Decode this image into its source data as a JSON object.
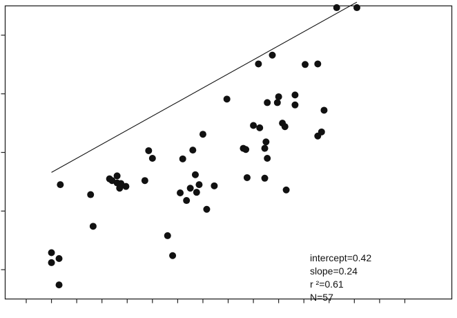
{
  "chart_data": {
    "type": "scatter",
    "title": "",
    "xlabel": "",
    "ylabel": "",
    "xlim": [
      0,
      16
    ],
    "ylim": [
      -1.5,
      3.5
    ],
    "grid": false,
    "x_ticks": [
      0,
      1,
      2,
      3,
      4,
      5,
      6,
      7,
      8,
      9,
      10,
      11,
      12,
      13,
      14,
      15
    ],
    "y_ticks": [
      -1,
      0,
      1,
      2,
      3
    ],
    "colors": {
      "points": "#111111",
      "line": "#111111",
      "frame": "#222222"
    },
    "points": [
      [
        1.0,
        -0.71
      ],
      [
        1.0,
        -0.88
      ],
      [
        1.3,
        -0.81
      ],
      [
        1.3,
        -1.26
      ],
      [
        1.35,
        0.45
      ],
      [
        2.55,
        0.28
      ],
      [
        2.65,
        -0.26
      ],
      [
        3.3,
        0.55
      ],
      [
        3.4,
        0.52
      ],
      [
        3.6,
        0.48
      ],
      [
        3.6,
        0.6
      ],
      [
        3.7,
        0.39
      ],
      [
        3.75,
        0.47
      ],
      [
        3.95,
        0.42
      ],
      [
        4.7,
        0.52
      ],
      [
        4.85,
        1.03
      ],
      [
        5.0,
        0.9
      ],
      [
        5.6,
        -0.42
      ],
      [
        5.8,
        -0.76
      ],
      [
        6.1,
        0.31
      ],
      [
        6.2,
        0.89
      ],
      [
        6.35,
        0.18
      ],
      [
        6.5,
        0.39
      ],
      [
        6.6,
        1.04
      ],
      [
        6.7,
        0.62
      ],
      [
        6.75,
        0.32
      ],
      [
        6.85,
        0.45
      ],
      [
        7.0,
        1.31
      ],
      [
        7.15,
        0.03
      ],
      [
        7.45,
        0.43
      ],
      [
        7.95,
        1.91
      ],
      [
        8.6,
        1.07
      ],
      [
        8.7,
        1.05
      ],
      [
        8.75,
        0.57
      ],
      [
        9.0,
        1.46
      ],
      [
        9.2,
        2.51
      ],
      [
        9.25,
        1.42
      ],
      [
        9.45,
        1.07
      ],
      [
        9.5,
        1.18
      ],
      [
        9.55,
        0.9
      ],
      [
        9.55,
        1.85
      ],
      [
        9.45,
        0.56
      ],
      [
        9.75,
        2.66
      ],
      [
        9.95,
        1.85
      ],
      [
        10.0,
        1.95
      ],
      [
        10.15,
        1.5
      ],
      [
        10.25,
        1.44
      ],
      [
        10.3,
        0.36
      ],
      [
        10.65,
        1.98
      ],
      [
        10.65,
        1.81
      ],
      [
        11.05,
        2.5
      ],
      [
        11.55,
        2.51
      ],
      [
        11.55,
        1.28
      ],
      [
        11.7,
        1.35
      ],
      [
        11.8,
        1.72
      ],
      [
        12.3,
        3.47
      ],
      [
        13.1,
        3.47
      ]
    ],
    "fit_line": {
      "intercept": 0.42,
      "slope": 0.24,
      "x_range": [
        1.0,
        13.1
      ]
    },
    "annotations": [
      "intercept=0.42",
      "slope=0.24",
      "r ²=0.61",
      "N=57"
    ]
  }
}
